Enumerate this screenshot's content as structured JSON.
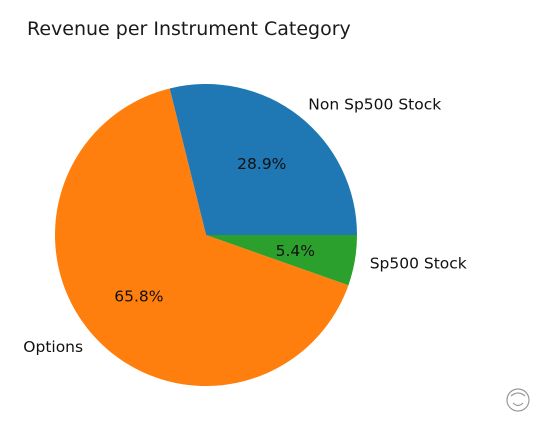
{
  "chart_data": {
    "type": "pie",
    "title": "Revenue per Instrument Category",
    "categories": [
      "Non Sp500 Stock",
      "Options",
      "Sp500 Stock"
    ],
    "values": [
      28.9,
      65.8,
      5.4
    ],
    "value_labels": [
      "28.9%",
      "65.8%",
      "5.4%"
    ],
    "colors": [
      "#1f77b4",
      "#ff7f0e",
      "#2ca02c"
    ],
    "start_angle_deg": 0,
    "direction": "counterclockwise",
    "legend": "none"
  }
}
